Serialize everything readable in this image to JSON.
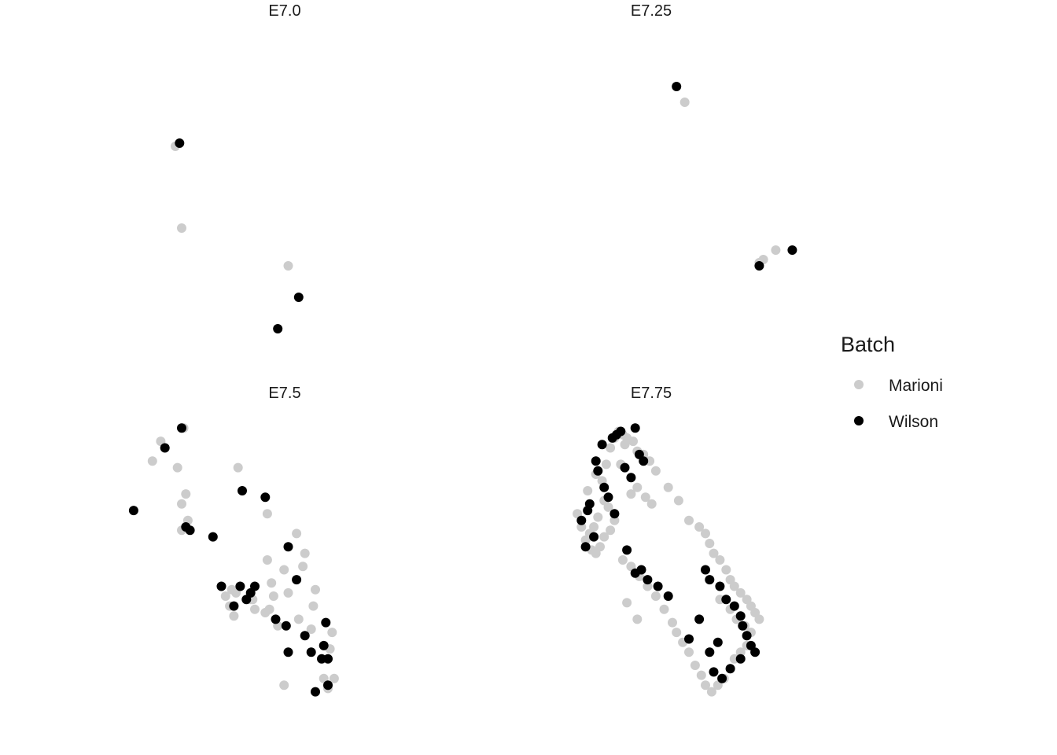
{
  "chart_data": {
    "type": "scatter",
    "grid": false,
    "legend_position": "right",
    "legend": {
      "title": "Batch",
      "entries": [
        {
          "name": "Marioni",
          "color": "#cccccc"
        },
        {
          "name": "Wilson",
          "color": "#000000"
        }
      ]
    },
    "facets": [
      {
        "title": "E7.0",
        "series": [
          {
            "name": "Marioni",
            "points": [
              [
                -0.4,
                0.66
              ],
              [
                -0.37,
                0.4
              ],
              [
                0.14,
                0.28
              ]
            ]
          },
          {
            "name": "Wilson",
            "points": [
              [
                -0.38,
                0.67
              ],
              [
                0.19,
                0.18
              ],
              [
                0.09,
                0.08
              ]
            ]
          }
        ]
      },
      {
        "title": "E7.25",
        "series": [
          {
            "name": "Marioni",
            "points": [
              [
                0.28,
                0.8
              ],
              [
                0.66,
                0.3
              ],
              [
                0.64,
                0.29
              ],
              [
                0.72,
                0.33
              ]
            ]
          },
          {
            "name": "Wilson",
            "points": [
              [
                0.24,
                0.85
              ],
              [
                0.64,
                0.28
              ],
              [
                0.8,
                0.33
              ]
            ]
          }
        ]
      },
      {
        "title": "E7.5",
        "series": [
          {
            "name": "Marioni",
            "points": [
              [
                -0.36,
                0.98
              ],
              [
                -0.47,
                0.94
              ],
              [
                -0.51,
                0.88
              ],
              [
                -0.39,
                0.86
              ],
              [
                -0.35,
                0.78
              ],
              [
                -0.37,
                0.75
              ],
              [
                -0.34,
                0.7
              ],
              [
                -0.37,
                0.67
              ],
              [
                -0.1,
                0.86
              ],
              [
                0.04,
                0.72
              ],
              [
                0.18,
                0.66
              ],
              [
                0.22,
                0.6
              ],
              [
                0.21,
                0.56
              ],
              [
                0.12,
                0.55
              ],
              [
                0.04,
                0.58
              ],
              [
                0.06,
                0.51
              ],
              [
                -0.13,
                0.49
              ],
              [
                -0.16,
                0.47
              ],
              [
                -0.14,
                0.44
              ],
              [
                -0.11,
                0.48
              ],
              [
                -0.04,
                0.46
              ],
              [
                0.03,
                0.42
              ],
              [
                -0.12,
                0.41
              ],
              [
                -0.03,
                0.46
              ],
              [
                0.07,
                0.47
              ],
              [
                -0.02,
                0.43
              ],
              [
                0.05,
                0.43
              ],
              [
                0.09,
                0.38
              ],
              [
                0.14,
                0.48
              ],
              [
                0.19,
                0.4
              ],
              [
                0.25,
                0.37
              ],
              [
                0.27,
                0.49
              ],
              [
                0.26,
                0.44
              ],
              [
                0.35,
                0.36
              ],
              [
                0.34,
                0.31
              ],
              [
                0.31,
                0.22
              ],
              [
                0.33,
                0.19
              ],
              [
                0.36,
                0.22
              ],
              [
                0.12,
                0.2
              ]
            ],
            "notes": ""
          },
          {
            "name": "Wilson",
            "points": [
              [
                -0.37,
                0.98
              ],
              [
                -0.45,
                0.92
              ],
              [
                -0.6,
                0.73
              ],
              [
                -0.33,
                0.67
              ],
              [
                -0.35,
                0.68
              ],
              [
                -0.22,
                0.65
              ],
              [
                -0.08,
                0.79
              ],
              [
                0.03,
                0.77
              ],
              [
                0.14,
                0.62
              ],
              [
                0.18,
                0.52
              ],
              [
                -0.18,
                0.5
              ],
              [
                -0.09,
                0.5
              ],
              [
                -0.04,
                0.48
              ],
              [
                -0.02,
                0.5
              ],
              [
                -0.12,
                0.44
              ],
              [
                -0.06,
                0.46
              ],
              [
                0.08,
                0.4
              ],
              [
                0.13,
                0.38
              ],
              [
                0.32,
                0.39
              ],
              [
                0.33,
                0.28
              ],
              [
                0.31,
                0.32
              ],
              [
                0.3,
                0.28
              ],
              [
                0.33,
                0.2
              ],
              [
                0.27,
                0.18
              ],
              [
                0.14,
                0.3
              ],
              [
                0.22,
                0.35
              ],
              [
                0.25,
                0.3
              ]
            ]
          }
        ]
      },
      {
        "title": "E7.75",
        "series": [
          {
            "name": "Marioni",
            "points": [
              [
                -0.24,
                0.72
              ],
              [
                -0.22,
                0.68
              ],
              [
                -0.19,
                0.79
              ],
              [
                -0.15,
                0.84
              ],
              [
                -0.12,
                0.82
              ],
              [
                -0.1,
                0.87
              ],
              [
                -0.08,
                0.92
              ],
              [
                -0.06,
                0.95
              ],
              [
                -0.04,
                0.97
              ],
              [
                -0.02,
                0.96
              ],
              [
                0.0,
                0.95
              ],
              [
                -0.01,
                0.93
              ],
              [
                0.03,
                0.94
              ],
              [
                0.05,
                0.91
              ],
              [
                0.08,
                0.9
              ],
              [
                0.11,
                0.88
              ],
              [
                0.14,
                0.85
              ],
              [
                -0.03,
                0.87
              ],
              [
                -0.11,
                0.76
              ],
              [
                -0.09,
                0.74
              ],
              [
                -0.14,
                0.71
              ],
              [
                -0.16,
                0.68
              ],
              [
                -0.18,
                0.66
              ],
              [
                -0.2,
                0.64
              ],
              [
                -0.17,
                0.61
              ],
              [
                -0.15,
                0.6
              ],
              [
                -0.13,
                0.62
              ],
              [
                -0.11,
                0.65
              ],
              [
                -0.08,
                0.67
              ],
              [
                -0.06,
                0.7
              ],
              [
                0.02,
                0.78
              ],
              [
                0.05,
                0.8
              ],
              [
                0.09,
                0.77
              ],
              [
                0.12,
                0.75
              ],
              [
                0.2,
                0.8
              ],
              [
                0.25,
                0.76
              ],
              [
                0.3,
                0.7
              ],
              [
                0.35,
                0.68
              ],
              [
                0.38,
                0.66
              ],
              [
                0.4,
                0.63
              ],
              [
                0.42,
                0.6
              ],
              [
                0.45,
                0.58
              ],
              [
                0.48,
                0.55
              ],
              [
                0.5,
                0.52
              ],
              [
                0.52,
                0.5
              ],
              [
                0.55,
                0.48
              ],
              [
                0.58,
                0.46
              ],
              [
                0.6,
                0.44
              ],
              [
                0.62,
                0.42
              ],
              [
                0.64,
                0.4
              ],
              [
                0.6,
                0.36
              ],
              [
                0.58,
                0.32
              ],
              [
                0.55,
                0.3
              ],
              [
                0.52,
                0.28
              ],
              [
                0.5,
                0.25
              ],
              [
                0.47,
                0.22
              ],
              [
                0.44,
                0.2
              ],
              [
                0.41,
                0.18
              ],
              [
                0.38,
                0.2
              ],
              [
                0.36,
                0.23
              ],
              [
                0.33,
                0.26
              ],
              [
                0.3,
                0.3
              ],
              [
                0.27,
                0.33
              ],
              [
                0.24,
                0.36
              ],
              [
                0.22,
                0.39
              ],
              [
                0.18,
                0.43
              ],
              [
                0.14,
                0.47
              ],
              [
                0.1,
                0.5
              ],
              [
                0.06,
                0.53
              ],
              [
                0.02,
                0.56
              ],
              [
                -0.02,
                0.58
              ],
              [
                0.0,
                0.45
              ],
              [
                0.05,
                0.4
              ],
              [
                0.45,
                0.46
              ],
              [
                0.5,
                0.43
              ],
              [
                0.53,
                0.4
              ],
              [
                0.57,
                0.38
              ]
            ]
          },
          {
            "name": "Wilson",
            "points": [
              [
                -0.22,
                0.7
              ],
              [
                -0.19,
                0.73
              ],
              [
                -0.18,
                0.75
              ],
              [
                -0.15,
                0.88
              ],
              [
                -0.14,
                0.85
              ],
              [
                -0.12,
                0.93
              ],
              [
                -0.07,
                0.95
              ],
              [
                -0.05,
                0.96
              ],
              [
                -0.03,
                0.97
              ],
              [
                0.04,
                0.98
              ],
              [
                0.06,
                0.9
              ],
              [
                0.08,
                0.88
              ],
              [
                0.02,
                0.83
              ],
              [
                -0.01,
                0.86
              ],
              [
                -0.11,
                0.8
              ],
              [
                -0.09,
                0.77
              ],
              [
                -0.06,
                0.72
              ],
              [
                -0.16,
                0.65
              ],
              [
                -0.2,
                0.62
              ],
              [
                0.0,
                0.61
              ],
              [
                0.04,
                0.54
              ],
              [
                0.1,
                0.52
              ],
              [
                0.07,
                0.55
              ],
              [
                0.15,
                0.5
              ],
              [
                0.2,
                0.47
              ],
              [
                0.38,
                0.55
              ],
              [
                0.4,
                0.52
              ],
              [
                0.45,
                0.5
              ],
              [
                0.48,
                0.46
              ],
              [
                0.52,
                0.44
              ],
              [
                0.55,
                0.41
              ],
              [
                0.56,
                0.38
              ],
              [
                0.58,
                0.35
              ],
              [
                0.6,
                0.32
              ],
              [
                0.62,
                0.3
              ],
              [
                0.55,
                0.28
              ],
              [
                0.5,
                0.25
              ],
              [
                0.46,
                0.22
              ],
              [
                0.42,
                0.24
              ],
              [
                0.4,
                0.3
              ],
              [
                0.44,
                0.33
              ],
              [
                0.3,
                0.34
              ],
              [
                0.35,
                0.4
              ]
            ]
          }
        ]
      }
    ]
  }
}
